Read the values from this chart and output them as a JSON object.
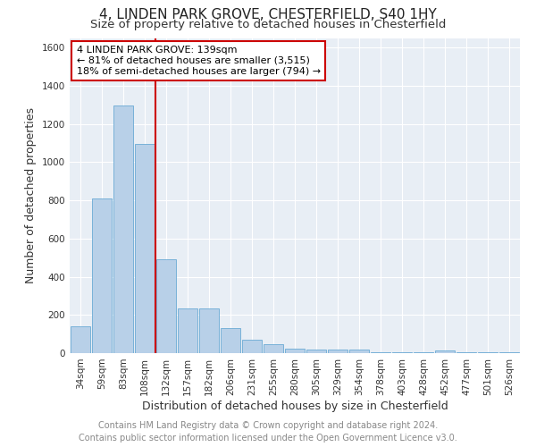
{
  "title": "4, LINDEN PARK GROVE, CHESTERFIELD, S40 1HY",
  "subtitle": "Size of property relative to detached houses in Chesterfield",
  "xlabel": "Distribution of detached houses by size in Chesterfield",
  "ylabel": "Number of detached properties",
  "categories": [
    "34sqm",
    "59sqm",
    "83sqm",
    "108sqm",
    "132sqm",
    "157sqm",
    "182sqm",
    "206sqm",
    "231sqm",
    "255sqm",
    "280sqm",
    "305sqm",
    "329sqm",
    "354sqm",
    "378sqm",
    "403sqm",
    "428sqm",
    "452sqm",
    "477sqm",
    "501sqm",
    "526sqm"
  ],
  "values": [
    140,
    810,
    1295,
    1095,
    490,
    235,
    235,
    130,
    70,
    48,
    25,
    18,
    18,
    18,
    5,
    3,
    3,
    15,
    3,
    3,
    3
  ],
  "bar_color": "#b8d0e8",
  "bar_edge_color": "#6aaad4",
  "vline_color": "#cc0000",
  "vline_x_index": 4,
  "annotation_line1": "4 LINDEN PARK GROVE: 139sqm",
  "annotation_line2": "← 81% of detached houses are smaller (3,515)",
  "annotation_line3": "18% of semi-detached houses are larger (794) →",
  "annotation_box_color": "#cc0000",
  "ylim": [
    0,
    1650
  ],
  "yticks": [
    0,
    200,
    400,
    600,
    800,
    1000,
    1200,
    1400,
    1600
  ],
  "footer_line1": "Contains HM Land Registry data © Crown copyright and database right 2024.",
  "footer_line2": "Contains public sector information licensed under the Open Government Licence v3.0.",
  "fig_bg_color": "#ffffff",
  "plot_bg_color": "#e8eef5",
  "grid_color": "#ffffff",
  "title_fontsize": 11,
  "subtitle_fontsize": 9.5,
  "axis_label_fontsize": 9,
  "tick_fontsize": 7.5,
  "annotation_fontsize": 8,
  "footer_fontsize": 7
}
